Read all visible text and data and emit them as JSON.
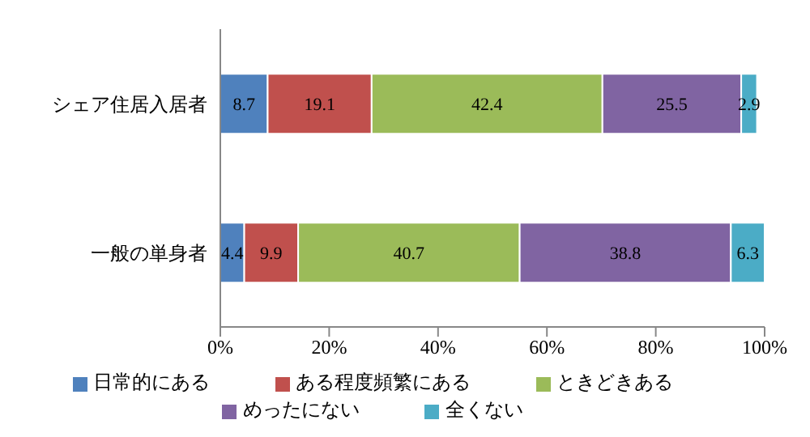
{
  "chart_data": {
    "type": "bar",
    "orientation": "horizontal",
    "stacked": true,
    "categories": [
      "シェア住居入居者",
      "一般の単身者"
    ],
    "series": [
      {
        "name": "日常的にある",
        "color": "#4f81bd",
        "values": [
          8.7,
          4.4
        ]
      },
      {
        "name": "ある程度頻繁にある",
        "color": "#c0504d",
        "values": [
          19.1,
          9.9
        ]
      },
      {
        "name": "ときどきある",
        "color": "#9bbb59",
        "values": [
          42.4,
          40.7
        ]
      },
      {
        "name": "めったにない",
        "color": "#8064a2",
        "values": [
          25.5,
          38.8
        ]
      },
      {
        "name": "全くない",
        "color": "#4bacc6",
        "values": [
          2.9,
          6.3
        ]
      }
    ],
    "xlim": [
      0,
      100
    ],
    "xticks": [
      {
        "value": 0,
        "label": "0%"
      },
      {
        "value": 20,
        "label": "20%"
      },
      {
        "value": 40,
        "label": "40%"
      },
      {
        "value": 60,
        "label": "60%"
      },
      {
        "value": 80,
        "label": "80%"
      },
      {
        "value": 100,
        "label": "100%"
      }
    ],
    "data_labels": true,
    "grid": false,
    "legend": "bottom"
  }
}
